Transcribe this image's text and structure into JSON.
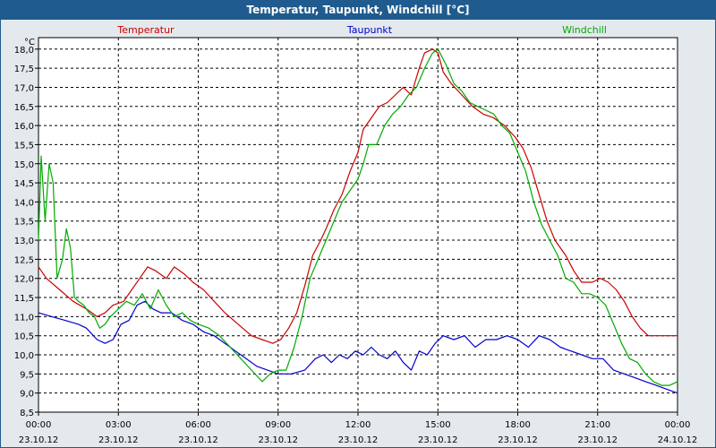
{
  "window": {
    "title": "Temperatur, Taupunkt, Windchill [°C]"
  },
  "chart_data": {
    "type": "line",
    "title": "Temperatur, Taupunkt, Windchill [°C]",
    "ylabel": "°C",
    "ylim": [
      8.5,
      18.3
    ],
    "xlim": [
      0,
      24
    ],
    "grid": true,
    "y_ticks": [
      "8,5",
      "9,0",
      "9,5",
      "10,0",
      "10,5",
      "11,0",
      "11,5",
      "12,0",
      "12,5",
      "13,0",
      "13,5",
      "14,0",
      "14,5",
      "15,0",
      "15,5",
      "16,0",
      "16,5",
      "17,0",
      "17,5",
      "18,0"
    ],
    "x_ticks": [
      {
        "time": "00:00",
        "date": "23.10.12"
      },
      {
        "time": "03:00",
        "date": "23.10.12"
      },
      {
        "time": "06:00",
        "date": "23.10.12"
      },
      {
        "time": "09:00",
        "date": "23.10.12"
      },
      {
        "time": "12:00",
        "date": "23.10.12"
      },
      {
        "time": "15:00",
        "date": "23.10.12"
      },
      {
        "time": "18:00",
        "date": "23.10.12"
      },
      {
        "time": "21:00",
        "date": "23.10.12"
      },
      {
        "time": "00:00",
        "date": "24.10.12"
      }
    ],
    "series": [
      {
        "name": "Temperatur",
        "color": "#cc0000",
        "x": [
          0,
          0.3,
          0.8,
          1.3,
          1.8,
          2.2,
          2.5,
          2.8,
          3.2,
          3.5,
          3.8,
          4.1,
          4.4,
          4.8,
          5.1,
          5.5,
          5.8,
          6.2,
          6.6,
          7.0,
          7.5,
          8.0,
          8.4,
          8.8,
          9.1,
          9.4,
          9.7,
          10.0,
          10.3,
          10.6,
          10.8,
          11.1,
          11.4,
          11.7,
          12.0,
          12.2,
          12.5,
          12.8,
          13.1,
          13.4,
          13.7,
          14.0,
          14.3,
          14.5,
          14.8,
          15.0,
          15.2,
          15.5,
          15.9,
          16.3,
          16.7,
          17.1,
          17.5,
          17.9,
          18.2,
          18.5,
          18.8,
          19.1,
          19.4,
          19.8,
          20.1,
          20.4,
          20.8,
          21.1,
          21.4,
          21.7,
          22.0,
          22.3,
          22.6,
          22.9,
          23.2,
          23.5,
          23.8,
          24.0
        ],
        "values": [
          12.3,
          12.0,
          11.7,
          11.4,
          11.2,
          11.0,
          11.1,
          11.3,
          11.4,
          11.7,
          12.0,
          12.3,
          12.2,
          12.0,
          12.3,
          12.1,
          11.9,
          11.7,
          11.4,
          11.1,
          10.8,
          10.5,
          10.4,
          10.3,
          10.4,
          10.7,
          11.1,
          11.8,
          12.6,
          13.0,
          13.3,
          13.8,
          14.2,
          14.8,
          15.3,
          15.9,
          16.2,
          16.5,
          16.6,
          16.8,
          17.0,
          16.8,
          17.5,
          17.9,
          18.0,
          17.9,
          17.4,
          17.1,
          16.8,
          16.5,
          16.3,
          16.2,
          16.0,
          15.7,
          15.4,
          14.9,
          14.2,
          13.5,
          13.0,
          12.6,
          12.2,
          11.9,
          11.9,
          12.0,
          11.9,
          11.7,
          11.4,
          11.0,
          10.7,
          10.5,
          10.5,
          10.5,
          10.5,
          10.5
        ]
      },
      {
        "name": "Taupunkt",
        "color": "#0000cc",
        "x": [
          0,
          0.5,
          1.0,
          1.5,
          1.8,
          2.2,
          2.5,
          2.8,
          3.1,
          3.4,
          3.7,
          4.0,
          4.3,
          4.6,
          5.0,
          5.4,
          5.8,
          6.2,
          6.6,
          7.0,
          7.4,
          7.8,
          8.2,
          8.6,
          9.0,
          9.5,
          10.0,
          10.4,
          10.7,
          11.0,
          11.3,
          11.6,
          11.9,
          12.2,
          12.5,
          12.8,
          13.1,
          13.4,
          13.7,
          14.0,
          14.3,
          14.6,
          14.9,
          15.2,
          15.6,
          16.0,
          16.4,
          16.8,
          17.2,
          17.6,
          18.0,
          18.4,
          18.8,
          19.2,
          19.6,
          20.0,
          20.4,
          20.8,
          21.2,
          21.6,
          22.0,
          22.4,
          22.8,
          23.2,
          23.6,
          24.0
        ],
        "values": [
          11.1,
          11.0,
          10.9,
          10.8,
          10.7,
          10.4,
          10.3,
          10.4,
          10.8,
          10.9,
          11.3,
          11.4,
          11.2,
          11.1,
          11.1,
          10.9,
          10.8,
          10.6,
          10.5,
          10.3,
          10.1,
          9.9,
          9.7,
          9.6,
          9.5,
          9.5,
          9.6,
          9.9,
          10.0,
          9.8,
          10.0,
          9.9,
          10.1,
          10.0,
          10.2,
          10.0,
          9.9,
          10.1,
          9.8,
          9.6,
          10.1,
          10.0,
          10.3,
          10.5,
          10.4,
          10.5,
          10.2,
          10.4,
          10.4,
          10.5,
          10.4,
          10.2,
          10.5,
          10.4,
          10.2,
          10.1,
          10.0,
          9.9,
          9.9,
          9.6,
          9.5,
          9.4,
          9.3,
          9.2,
          9.1,
          9.0
        ]
      },
      {
        "name": "Windchill",
        "color": "#00aa00",
        "x": [
          0,
          0.1,
          0.25,
          0.4,
          0.55,
          0.7,
          0.9,
          1.05,
          1.2,
          1.35,
          1.5,
          1.7,
          1.9,
          2.1,
          2.3,
          2.5,
          2.7,
          3.0,
          3.3,
          3.6,
          3.9,
          4.2,
          4.5,
          4.8,
          5.1,
          5.4,
          5.7,
          6.0,
          6.4,
          6.8,
          7.2,
          7.6,
          8.0,
          8.4,
          8.7,
          9.0,
          9.3,
          9.6,
          9.9,
          10.2,
          10.5,
          10.8,
          11.1,
          11.4,
          11.7,
          12.0,
          12.2,
          12.4,
          12.7,
          13.0,
          13.3,
          13.6,
          13.9,
          14.2,
          14.5,
          14.8,
          15.0,
          15.3,
          15.6,
          15.9,
          16.2,
          16.5,
          16.8,
          17.1,
          17.4,
          17.7,
          18.0,
          18.3,
          18.6,
          18.9,
          19.2,
          19.5,
          19.8,
          20.1,
          20.4,
          20.7,
          21.0,
          21.3,
          21.6,
          21.9,
          22.2,
          22.5,
          22.8,
          23.1,
          23.4,
          23.7,
          24.0
        ],
        "values": [
          13.0,
          15.2,
          13.5,
          15.0,
          14.5,
          12.0,
          12.5,
          13.3,
          12.8,
          11.5,
          11.4,
          11.3,
          11.1,
          11.0,
          10.7,
          10.8,
          11.0,
          11.2,
          11.4,
          11.3,
          11.6,
          11.2,
          11.7,
          11.3,
          11.0,
          11.1,
          10.9,
          10.8,
          10.7,
          10.5,
          10.2,
          9.9,
          9.6,
          9.3,
          9.5,
          9.6,
          9.6,
          10.2,
          11.0,
          12.0,
          12.5,
          13.0,
          13.5,
          14.0,
          14.3,
          14.6,
          15.0,
          15.5,
          15.5,
          16.0,
          16.3,
          16.5,
          16.8,
          17.0,
          17.5,
          17.9,
          18.0,
          17.6,
          17.1,
          16.9,
          16.6,
          16.5,
          16.4,
          16.3,
          16.0,
          15.8,
          15.3,
          14.8,
          14.0,
          13.4,
          13.0,
          12.6,
          12.0,
          11.9,
          11.6,
          11.6,
          11.5,
          11.3,
          10.8,
          10.3,
          9.9,
          9.8,
          9.5,
          9.3,
          9.2,
          9.2,
          9.3
        ]
      }
    ]
  }
}
